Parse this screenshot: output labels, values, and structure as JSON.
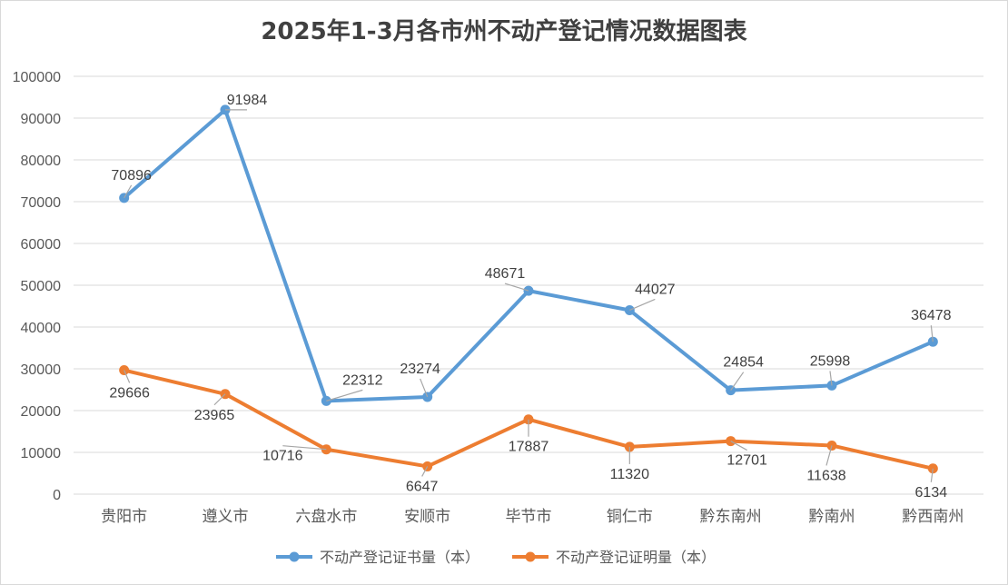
{
  "chart_data": {
    "type": "line",
    "title": "2025年1-3月各市州不动产登记情况数据图表",
    "categories": [
      "贵阳市",
      "遵义市",
      "六盘水市",
      "安顺市",
      "毕节市",
      "铜仁市",
      "黔东南州",
      "黔南州",
      "黔西南州"
    ],
    "ylim": [
      0,
      100000
    ],
    "yticks": [
      0,
      10000,
      20000,
      30000,
      40000,
      50000,
      60000,
      70000,
      80000,
      90000,
      100000
    ],
    "grid": true,
    "legend_position": "bottom",
    "series": [
      {
        "name": "不动产登记证书量（本）",
        "color": "#5b9bd5",
        "values": [
          70896,
          91984,
          22312,
          23274,
          48671,
          44027,
          24854,
          25998,
          36478
        ]
      },
      {
        "name": "不动产登记证明量（本）",
        "color": "#ed7d31",
        "values": [
          29666,
          23965,
          10716,
          6647,
          17887,
          11320,
          12701,
          11638,
          6134
        ]
      }
    ]
  }
}
